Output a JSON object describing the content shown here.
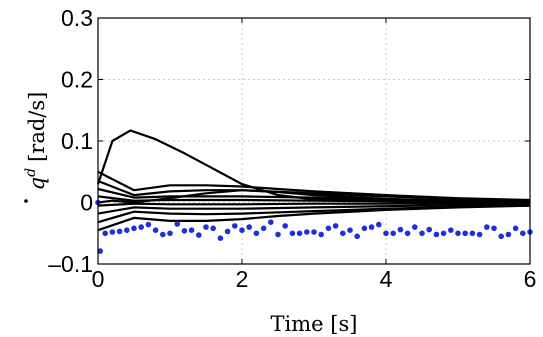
{
  "chart_data": {
    "type": "line",
    "title": "",
    "xlabel": "Time [s]",
    "ylabel_base": "q",
    "ylabel_sup": "d",
    "ylabel_unit": "[rad/s]",
    "xlim": [
      0,
      6
    ],
    "ylim": [
      -0.1,
      0.3
    ],
    "xticks": [
      0,
      2,
      4,
      6
    ],
    "xtick_labels": [
      "0",
      "2",
      "4",
      "6"
    ],
    "yticks": [
      -0.1,
      0,
      0.1,
      0.2,
      0.3
    ],
    "ytick_labels": [
      "–0.1",
      "0",
      "0.1",
      "0.2",
      "0.3"
    ],
    "grid": true,
    "line_color": "#000000",
    "marker_color": "#1f2fe0",
    "series": [
      {
        "x": [
          0,
          0.2,
          0.45,
          0.8,
          1.2,
          1.6,
          2.0,
          2.5,
          3.0,
          4.0,
          5.0,
          6.0
        ],
        "y": [
          0.03,
          0.1,
          0.117,
          0.103,
          0.08,
          0.055,
          0.03,
          0.012,
          0.005,
          0.002,
          0.001,
          0.001
        ]
      },
      {
        "x": [
          0,
          0.5,
          1.0,
          1.5,
          2.0,
          2.5,
          3.0,
          4.0,
          5.0,
          6.0
        ],
        "y": [
          0.05,
          0.02,
          0.028,
          0.028,
          0.026,
          0.022,
          0.018,
          0.012,
          0.007,
          0.004
        ]
      },
      {
        "x": [
          0,
          0.5,
          1.0,
          1.5,
          2.0,
          3.0,
          4.0,
          5.0,
          6.0
        ],
        "y": [
          0.035,
          0.012,
          0.018,
          0.02,
          0.02,
          0.015,
          0.01,
          0.006,
          0.003
        ]
      },
      {
        "x": [
          0,
          0.5,
          1.0,
          2.0,
          3.0,
          4.0,
          5.0,
          6.0
        ],
        "y": [
          0.022,
          0.008,
          0.01,
          0.01,
          0.008,
          0.005,
          0.003,
          0.002
        ]
      },
      {
        "x": [
          0,
          0.5,
          1.0,
          2.0,
          3.0,
          4.0,
          5.0,
          6.0
        ],
        "y": [
          0.01,
          0.003,
          0.004,
          0.004,
          0.003,
          0.002,
          0.001,
          0.001
        ]
      },
      {
        "x": [
          0,
          0.5,
          1.0,
          2.0,
          3.0,
          4.0,
          5.0,
          6.0
        ],
        "y": [
          -0.005,
          -0.002,
          -0.003,
          -0.003,
          -0.002,
          -0.002,
          -0.001,
          -0.001
        ]
      },
      {
        "x": [
          0,
          0.5,
          1.0,
          2.0,
          3.0,
          4.0,
          5.0,
          6.0
        ],
        "y": [
          -0.018,
          -0.008,
          -0.01,
          -0.01,
          -0.008,
          -0.006,
          -0.004,
          -0.003
        ]
      },
      {
        "x": [
          0,
          0.5,
          1.0,
          1.5,
          2.0,
          3.0,
          4.0,
          5.0,
          6.0
        ],
        "y": [
          -0.032,
          -0.015,
          -0.018,
          -0.019,
          -0.018,
          -0.014,
          -0.01,
          -0.007,
          -0.005
        ]
      },
      {
        "x": [
          0,
          0.5,
          1.0,
          1.5,
          2.0,
          2.5,
          3.0,
          4.0,
          5.0,
          6.0
        ],
        "y": [
          -0.045,
          -0.025,
          -0.03,
          -0.03,
          -0.027,
          -0.022,
          -0.018,
          -0.012,
          -0.008,
          -0.005
        ]
      },
      {
        "x": [
          0,
          0.2,
          0.5,
          1.0,
          1.5,
          2.0,
          2.5,
          3.0,
          4.0,
          5.0,
          6.0
        ],
        "y": [
          0.0,
          0.003,
          0.0,
          0.007,
          0.015,
          0.02,
          0.017,
          0.012,
          0.006,
          0.003,
          0.002
        ]
      }
    ],
    "scatter": {
      "x": [
        0.0,
        0.03,
        0.1,
        0.2,
        0.3,
        0.4,
        0.5,
        0.6,
        0.7,
        0.8,
        0.9,
        1.0,
        1.1,
        1.2,
        1.3,
        1.4,
        1.5,
        1.6,
        1.7,
        1.8,
        1.9,
        2.0,
        2.1,
        2.2,
        2.3,
        2.4,
        2.5,
        2.6,
        2.7,
        2.8,
        2.9,
        3.0,
        3.1,
        3.2,
        3.3,
        3.4,
        3.5,
        3.6,
        3.7,
        3.8,
        3.9,
        4.0,
        4.1,
        4.2,
        4.3,
        4.4,
        4.5,
        4.6,
        4.7,
        4.8,
        4.9,
        5.0,
        5.1,
        5.2,
        5.3,
        5.4,
        5.5,
        5.6,
        5.7,
        5.8,
        5.9,
        6.0
      ],
      "y": [
        0.0,
        -0.079,
        -0.05,
        -0.048,
        -0.047,
        -0.045,
        -0.042,
        -0.04,
        -0.036,
        -0.045,
        -0.052,
        -0.05,
        -0.035,
        -0.046,
        -0.045,
        -0.053,
        -0.04,
        -0.042,
        -0.058,
        -0.047,
        -0.038,
        -0.045,
        -0.04,
        -0.05,
        -0.042,
        -0.032,
        -0.052,
        -0.038,
        -0.05,
        -0.05,
        -0.048,
        -0.048,
        -0.052,
        -0.042,
        -0.038,
        -0.05,
        -0.045,
        -0.055,
        -0.042,
        -0.04,
        -0.036,
        -0.05,
        -0.05,
        -0.044,
        -0.05,
        -0.04,
        -0.05,
        -0.044,
        -0.052,
        -0.05,
        -0.045,
        -0.05,
        -0.05,
        -0.05,
        -0.052,
        -0.04,
        -0.042,
        -0.055,
        -0.052,
        -0.042,
        -0.05,
        -0.048
      ]
    }
  }
}
